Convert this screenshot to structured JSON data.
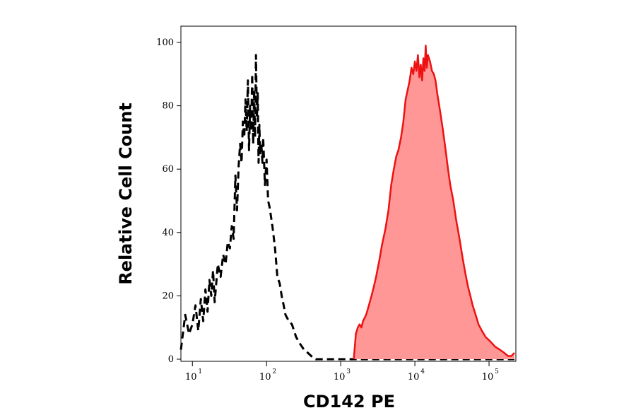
{
  "chart_data": {
    "type": "area",
    "title": "",
    "xlabel": "CD142 PE",
    "ylabel": "Relative Cell Count",
    "x_scale": "log",
    "xlim": [
      7,
      230000
    ],
    "ylim": [
      0,
      100
    ],
    "x_ticks": [
      {
        "base": "10",
        "exp": "1",
        "value": 10
      },
      {
        "base": "10",
        "exp": "2",
        "value": 100
      },
      {
        "base": "10",
        "exp": "3",
        "value": 1000
      },
      {
        "base": "10",
        "exp": "4",
        "value": 10000
      },
      {
        "base": "10",
        "exp": "5",
        "value": 100000
      }
    ],
    "y_ticks": [
      "0",
      "20",
      "40",
      "60",
      "80",
      "100"
    ],
    "grid": false,
    "legend": "none",
    "series": [
      {
        "style": "dashed",
        "color": "#000000",
        "fill": "none",
        "points": [
          [
            7,
            3
          ],
          [
            8,
            14
          ],
          [
            9,
            8
          ],
          [
            10,
            11
          ],
          [
            11,
            17
          ],
          [
            12,
            9
          ],
          [
            13,
            19
          ],
          [
            14,
            12
          ],
          [
            15,
            22
          ],
          [
            16,
            15
          ],
          [
            17,
            25
          ],
          [
            18,
            20
          ],
          [
            19,
            28
          ],
          [
            20,
            18
          ],
          [
            22,
            30
          ],
          [
            24,
            26
          ],
          [
            26,
            33
          ],
          [
            28,
            30
          ],
          [
            30,
            37
          ],
          [
            32,
            35
          ],
          [
            34,
            42
          ],
          [
            36,
            38
          ],
          [
            38,
            58
          ],
          [
            40,
            47
          ],
          [
            42,
            61
          ],
          [
            44,
            68
          ],
          [
            46,
            62
          ],
          [
            48,
            75
          ],
          [
            50,
            70
          ],
          [
            52,
            82
          ],
          [
            54,
            72
          ],
          [
            56,
            88
          ],
          [
            58,
            66
          ],
          [
            60,
            80
          ],
          [
            62,
            72
          ],
          [
            64,
            90
          ],
          [
            66,
            68
          ],
          [
            68,
            85
          ],
          [
            70,
            70
          ],
          [
            72,
            96
          ],
          [
            74,
            76
          ],
          [
            76,
            84
          ],
          [
            78,
            62
          ],
          [
            80,
            74
          ],
          [
            82,
            65
          ],
          [
            85,
            68
          ],
          [
            88,
            62
          ],
          [
            90,
            70
          ],
          [
            95,
            55
          ],
          [
            100,
            63
          ],
          [
            105,
            50
          ],
          [
            110,
            48
          ],
          [
            120,
            42
          ],
          [
            130,
            35
          ],
          [
            140,
            26
          ],
          [
            150,
            24
          ],
          [
            160,
            20
          ],
          [
            170,
            17
          ],
          [
            180,
            14
          ],
          [
            200,
            12
          ],
          [
            220,
            11
          ],
          [
            250,
            7
          ],
          [
            280,
            5
          ],
          [
            320,
            3
          ],
          [
            360,
            2
          ],
          [
            400,
            1
          ],
          [
            460,
            0
          ],
          [
            500,
            0
          ],
          [
            220000,
            0
          ]
        ]
      },
      {
        "style": "solid",
        "color": "#ee1111",
        "fill": "#ff9797",
        "points": [
          [
            1500,
            0
          ],
          [
            1600,
            8
          ],
          [
            1700,
            10
          ],
          [
            1800,
            11
          ],
          [
            1900,
            10
          ],
          [
            2000,
            12
          ],
          [
            2200,
            14
          ],
          [
            2400,
            17
          ],
          [
            2600,
            20
          ],
          [
            2800,
            23
          ],
          [
            3000,
            26
          ],
          [
            3300,
            31
          ],
          [
            3600,
            36
          ],
          [
            4000,
            41
          ],
          [
            4400,
            47
          ],
          [
            4800,
            55
          ],
          [
            5200,
            60
          ],
          [
            5600,
            64
          ],
          [
            6000,
            66
          ],
          [
            6500,
            70
          ],
          [
            7000,
            75
          ],
          [
            7500,
            82
          ],
          [
            8000,
            85
          ],
          [
            8500,
            88
          ],
          [
            9000,
            92
          ],
          [
            9500,
            90
          ],
          [
            10000,
            94
          ],
          [
            10500,
            91
          ],
          [
            11000,
            96
          ],
          [
            11500,
            89
          ],
          [
            12000,
            93
          ],
          [
            12500,
            88
          ],
          [
            13000,
            95
          ],
          [
            13500,
            91
          ],
          [
            14000,
            99
          ],
          [
            14500,
            92
          ],
          [
            15000,
            96
          ],
          [
            16000,
            94
          ],
          [
            17000,
            91
          ],
          [
            18000,
            90
          ],
          [
            19000,
            88
          ],
          [
            20000,
            84
          ],
          [
            22000,
            78
          ],
          [
            24000,
            72
          ],
          [
            26000,
            66
          ],
          [
            28000,
            60
          ],
          [
            30000,
            55
          ],
          [
            33000,
            50
          ],
          [
            36000,
            44
          ],
          [
            40000,
            38
          ],
          [
            44000,
            32
          ],
          [
            48000,
            27
          ],
          [
            52000,
            23
          ],
          [
            56000,
            20
          ],
          [
            60000,
            17
          ],
          [
            66000,
            14
          ],
          [
            72000,
            11
          ],
          [
            80000,
            9
          ],
          [
            90000,
            7
          ],
          [
            100000,
            6
          ],
          [
            110000,
            5
          ],
          [
            120000,
            4
          ],
          [
            140000,
            3
          ],
          [
            160000,
            2
          ],
          [
            180000,
            1
          ],
          [
            200000,
            1
          ],
          [
            220000,
            2
          ]
        ]
      }
    ]
  }
}
